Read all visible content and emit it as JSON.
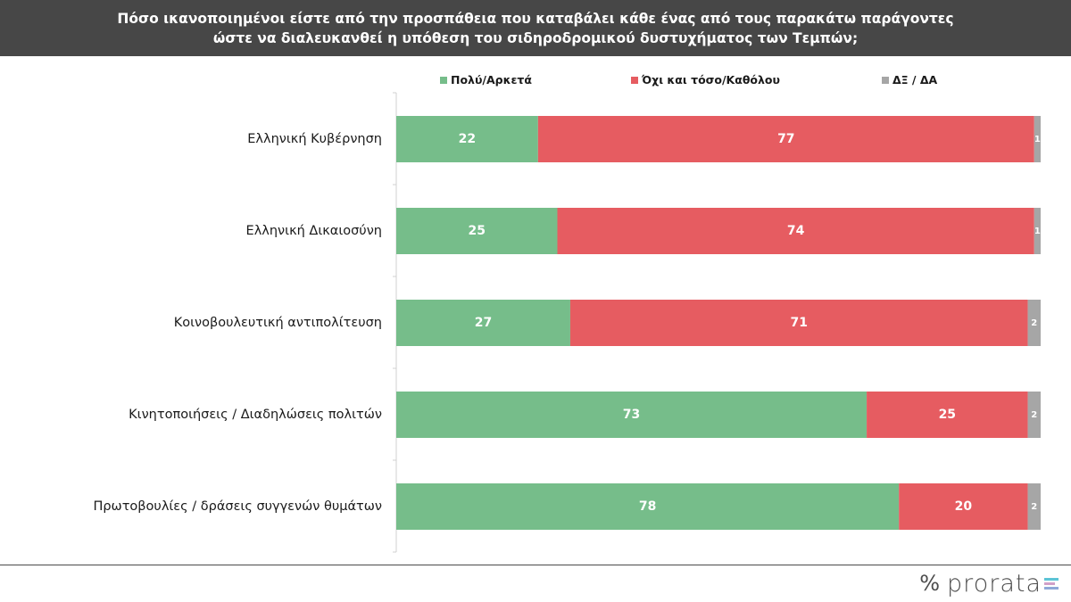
{
  "title": {
    "line1": "Πόσο ικανοποιημένοι είστε από την προσπάθεια που καταβάλει κάθε ένας από τους παρακάτω παράγοντες",
    "line2": "ώστε να διαλευκανθεί η υπόθεση του σιδηροδρομικού δυστυχήματος των Τεμπών;"
  },
  "legend": [
    {
      "label": "Πολύ/Αρκετά",
      "color": "#76bd8a"
    },
    {
      "label": "Όχι και τόσο/Καθόλου",
      "color": "#e65c61"
    },
    {
      "label": "ΔΞ / ΔΑ",
      "color": "#a6a6a6"
    }
  ],
  "chart_data": {
    "type": "bar",
    "orientation": "horizontal",
    "stacked": "100%",
    "categories": [
      "Ελληνική Κυβέρνηση",
      "Ελληνική Δικαιοσύνη",
      "Κοινοβουλευτική αντιπολίτευση",
      "Κινητοποιήσεις / Διαδηλώσεις πολιτών",
      "Πρωτοβουλίες / δράσεις συγγενών θυμάτων"
    ],
    "series": [
      {
        "name": "Πολύ/Αρκετά",
        "color": "#76bd8a",
        "values": [
          22,
          25,
          27,
          73,
          78
        ]
      },
      {
        "name": "Όχι και τόσο/Καθόλου",
        "color": "#e65c61",
        "values": [
          77,
          74,
          71,
          25,
          20
        ]
      },
      {
        "name": "ΔΞ / ΔΑ",
        "color": "#a6a6a6",
        "values": [
          1,
          1,
          2,
          2,
          2
        ]
      }
    ],
    "xlim": [
      0,
      100
    ],
    "legend_position": "top",
    "grid": false
  },
  "footer": {
    "logo_symbol": "%",
    "logo_text": "prorata",
    "logo_bar_colors": [
      "#5cc4d6",
      "#d0a0c8",
      "#8fa8d8"
    ]
  }
}
